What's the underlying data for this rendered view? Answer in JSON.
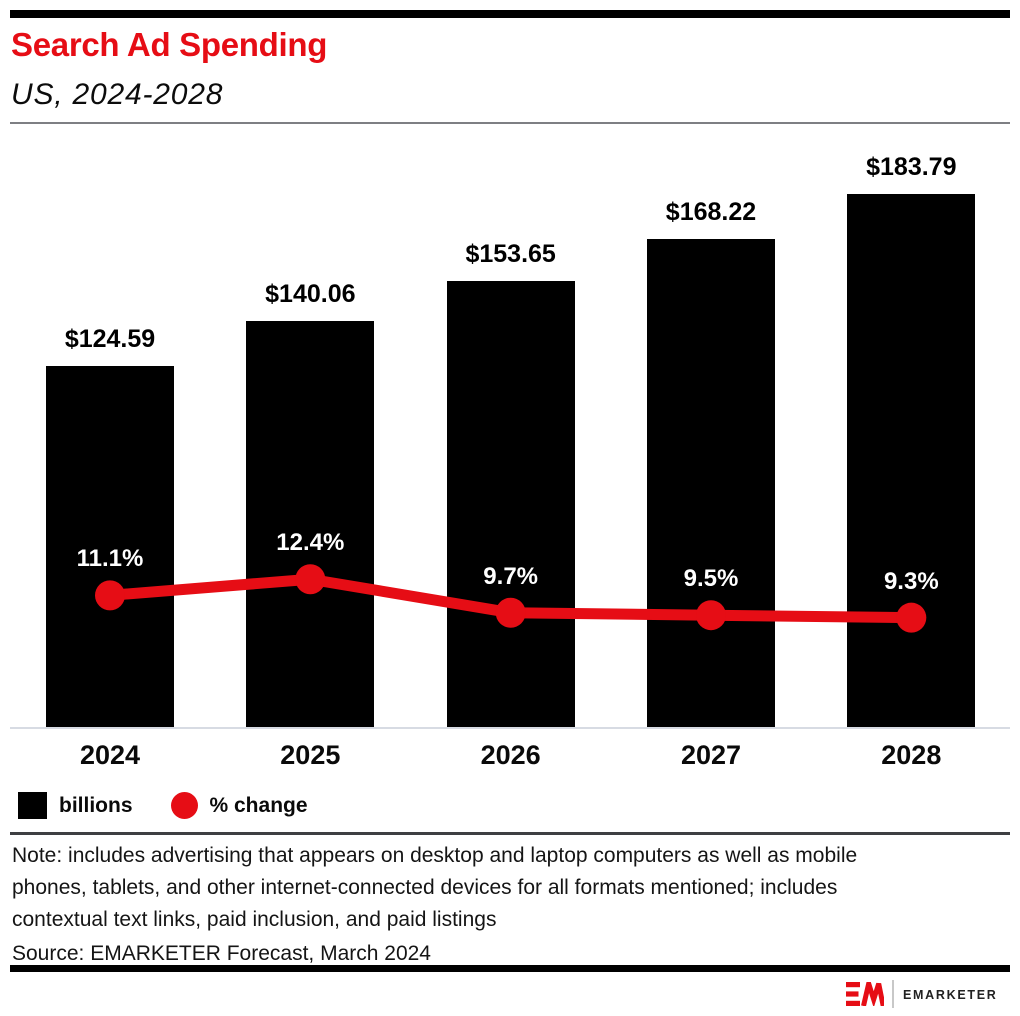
{
  "header": {
    "title": "Search Ad Spending",
    "subtitle": "US, 2024-2028"
  },
  "colors": {
    "accent_red": "#e60d15",
    "bar_black": "#000000",
    "axis_line": "#d7dbe3"
  },
  "chart_data": {
    "type": "bar",
    "combo": "bar+line",
    "title": "Search Ad Spending",
    "subtitle": "US, 2024-2028",
    "categories": [
      "2024",
      "2025",
      "2026",
      "2027",
      "2028"
    ],
    "series": [
      {
        "name": "billions",
        "type": "bar",
        "color": "#000000",
        "values": [
          124.59,
          140.06,
          153.65,
          168.22,
          183.79
        ],
        "labels": [
          "$124.59",
          "$140.06",
          "$153.65",
          "$168.22",
          "$183.79"
        ]
      },
      {
        "name": "% change",
        "type": "line",
        "color": "#e60d15",
        "values": [
          11.1,
          12.4,
          9.7,
          9.5,
          9.3
        ],
        "labels": [
          "11.1%",
          "12.4%",
          "9.7%",
          "9.5%",
          "9.3%"
        ]
      }
    ],
    "value_prefix": "$",
    "units": "billions (USD)",
    "grid": false,
    "legend_position": "bottom-left",
    "ylim_bars": [
      0,
      200
    ],
    "ylim_pct": [
      0,
      14
    ]
  },
  "legend": {
    "items": [
      {
        "label": "billions",
        "swatch": "square",
        "color": "#000000"
      },
      {
        "label": "% change",
        "swatch": "circle",
        "color": "#e60d15"
      }
    ]
  },
  "notes": {
    "note_lines": [
      "Note: includes advertising that appears on desktop and laptop computers as well as mobile",
      "phones, tablets, and other internet-connected devices for all formats mentioned; includes",
      "contextual text links, paid inclusion, and paid listings"
    ],
    "source": "Source: EMARKETER Forecast, March 2024"
  },
  "footer": {
    "brand": "EMARKETER",
    "logo": "em-logo"
  }
}
